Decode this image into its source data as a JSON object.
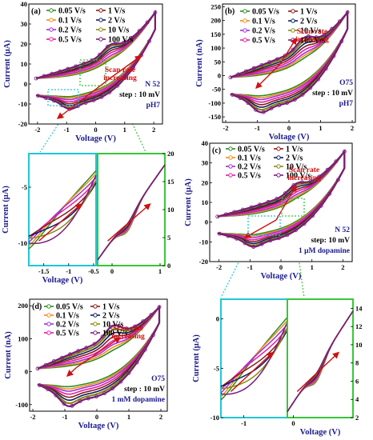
{
  "series_colors": {
    "0.05 V/s": "#2e8b1e",
    "0.1 V/s": "#f28c1a",
    "0.2 V/s": "#9b30d9",
    "0.5 V/s": "#e81ca6",
    "1 V/s": "#8b1a1a",
    "2 V/s": "#0b1f66",
    "10 V/s": "#8a8a14",
    "100 V/s": "#7a1a7a"
  },
  "chart_data": [
    {
      "id": "a",
      "type": "line",
      "panel_label": "(a)",
      "xlabel": "Voltage (V)",
      "ylabel": "Current (μA)",
      "xlim": [
        -2.3,
        2.3
      ],
      "ylim": [
        -20,
        40
      ],
      "xticks": [
        -2,
        -1,
        0,
        1,
        2
      ],
      "yticks": [
        -20,
        -10,
        0,
        10,
        20,
        30,
        40
      ],
      "legend": [
        "0.05 V/s",
        "0.1 V/s",
        "0.2 V/s",
        "0.5 V/s",
        "1 V/s",
        "2 V/s",
        "10 V/s",
        "100 V/s"
      ],
      "annotations": [
        "Scan rate increasing",
        "N 52",
        "step : 10 mV",
        "pH7"
      ],
      "series": [
        {
          "name": "0.05 V/s",
          "amp": 1.0
        },
        {
          "name": "0.1 V/s",
          "amp": 1.6
        },
        {
          "name": "0.2 V/s",
          "amp": 2.3
        },
        {
          "name": "0.5 V/s",
          "amp": 3.2
        },
        {
          "name": "1 V/s",
          "amp": 4.0
        },
        {
          "name": "2 V/s",
          "amp": 4.8
        },
        {
          "name": "10 V/s",
          "amp": 5.6
        },
        {
          "name": "100 V/s",
          "amp": 6.2
        }
      ]
    },
    {
      "id": "b",
      "type": "line",
      "panel_label": "(b)",
      "xlabel": "Voltage (V)",
      "ylabel": "Current (nA)",
      "xlim": [
        -2.1,
        2.1
      ],
      "ylim": [
        -170,
        260
      ],
      "xticks": [
        -2,
        -1,
        0,
        1,
        2
      ],
      "yticks": [
        -150,
        -100,
        -50,
        0,
        50,
        100,
        150,
        200,
        250
      ],
      "legend": [
        "0.05 V/s",
        "0.1 V/s",
        "0.2 V/s",
        "0.5 V/s",
        "1 V/s",
        "2 V/s",
        "10 V/s",
        "100 V/s"
      ],
      "annotations": [
        "Scan rate increasing",
        "O75",
        "step : 10 mV",
        "pH7"
      ],
      "series": [
        {
          "name": "0.05 V/s",
          "amp": 8
        },
        {
          "name": "0.1 V/s",
          "amp": 14
        },
        {
          "name": "0.2 V/s",
          "amp": 20
        },
        {
          "name": "0.5 V/s",
          "amp": 28
        },
        {
          "name": "1 V/s",
          "amp": 36
        },
        {
          "name": "2 V/s",
          "amp": 44
        },
        {
          "name": "10 V/s",
          "amp": 52
        },
        {
          "name": "100 V/s",
          "amp": 60
        }
      ]
    },
    {
      "id": "a_zoom_left",
      "type": "line",
      "xlabel": "Voltage (V)",
      "ylabel": "Current (μA)",
      "xlim": [
        -1.8,
        -0.45
      ],
      "ylim": [
        -12,
        -2
      ],
      "xticks": [
        -1.5,
        -1.0,
        -0.5
      ],
      "yticks": [
        -10,
        -5
      ]
    },
    {
      "id": "a_zoom_right",
      "type": "line",
      "xlim": [
        -0.3,
        1.1
      ],
      "ylim": [
        0,
        20
      ],
      "xticks": [
        0,
        1
      ],
      "yticks": [
        0,
        5,
        10,
        15,
        20
      ]
    },
    {
      "id": "c",
      "type": "line",
      "panel_label": "(c)",
      "xlabel": "Voltage (V)",
      "ylabel": "Current (μA)",
      "xlim": [
        -2.3,
        2.3
      ],
      "ylim": [
        -20,
        40
      ],
      "xticks": [
        -2,
        -1,
        0,
        1,
        2
      ],
      "yticks": [
        -20,
        -10,
        0,
        10,
        20,
        30,
        40
      ],
      "legend": [
        "0.05 V/s",
        "0.1 V/s",
        "0.2 V/s",
        "0.5 V/s",
        "1 V/s",
        "2 V/s",
        "10 V/s",
        "100 V/s"
      ],
      "annotations": [
        "Scan rate increasing",
        "N 52",
        "step: 10 mV",
        "1 μM dopamine"
      ],
      "series": [
        {
          "name": "0.05 V/s",
          "amp": 1.0
        },
        {
          "name": "0.1 V/s",
          "amp": 1.6
        },
        {
          "name": "0.2 V/s",
          "amp": 2.3
        },
        {
          "name": "0.5 V/s",
          "amp": 3.2
        },
        {
          "name": "1 V/s",
          "amp": 4.0
        },
        {
          "name": "2 V/s",
          "amp": 4.8
        },
        {
          "name": "10 V/s",
          "amp": 5.6
        },
        {
          "name": "100 V/s",
          "amp": 6.2
        }
      ]
    },
    {
      "id": "d",
      "type": "line",
      "panel_label": "(d)",
      "xlabel": "Voltage (V)",
      "ylabel": "Current (nA)",
      "xlim": [
        -2.1,
        2.2
      ],
      "ylim": [
        -120,
        220
      ],
      "xticks": [
        -2,
        -1,
        0,
        1,
        2
      ],
      "yticks": [
        -100,
        0,
        100,
        200
      ],
      "legend": [
        "0.05 V/s",
        "0.1 V/s",
        "0.2 V/s",
        "0.5 V/s",
        "1 V/s",
        "2 V/s",
        "10 V/s",
        "100 V/s"
      ],
      "annotations": [
        "Scan rate increasing",
        "O75",
        "step : 10 mV",
        "1 mM dopamine"
      ],
      "series": [
        {
          "name": "0.05 V/s",
          "amp": 8
        },
        {
          "name": "0.1 V/s",
          "amp": 14
        },
        {
          "name": "0.2 V/s",
          "amp": 20
        },
        {
          "name": "0.5 V/s",
          "amp": 28
        },
        {
          "name": "1 V/s",
          "amp": 36
        },
        {
          "name": "2 V/s",
          "amp": 44
        },
        {
          "name": "10 V/s",
          "amp": 52
        },
        {
          "name": "100 V/s",
          "amp": 60
        }
      ]
    },
    {
      "id": "c_zoom_left",
      "type": "line",
      "ylabel": "Current (μA)",
      "xlim": [
        -1.5,
        -0.05
      ],
      "ylim": [
        -10,
        2
      ],
      "xticks": [
        -1
      ],
      "yticks": [
        -10,
        -5,
        0
      ]
    },
    {
      "id": "c_zoom_right",
      "type": "line",
      "xlabel": "Voltage (V)",
      "xlim": [
        -0.1,
        1.0
      ],
      "ylim": [
        2,
        15
      ],
      "xticks": [
        0
      ],
      "yticks": [
        2,
        4,
        6,
        8,
        10,
        12,
        14
      ]
    }
  ]
}
